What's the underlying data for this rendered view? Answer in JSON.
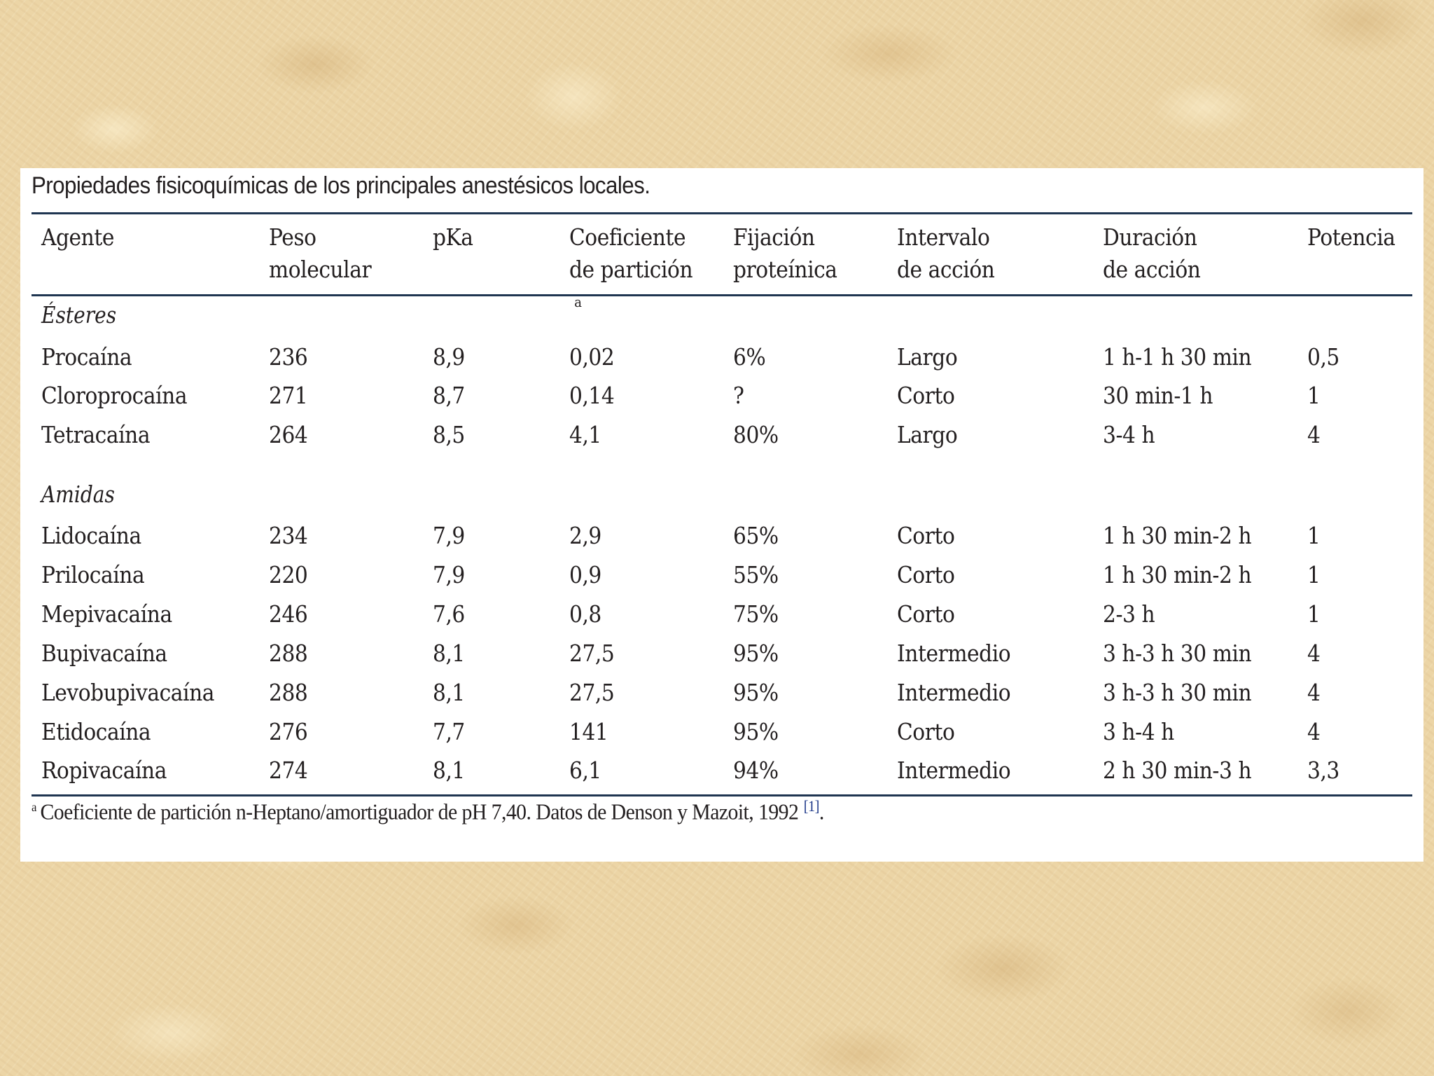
{
  "table": {
    "caption": "Propiedades fisicoquímicas de los principales anestésicos locales.",
    "headers": {
      "agente": [
        "Agente"
      ],
      "peso": [
        "Peso",
        "molecular"
      ],
      "pka": [
        "pKa"
      ],
      "coef": [
        "Coeficiente",
        "de partición"
      ],
      "coef_mark": "a",
      "fijacion": [
        "Fijación",
        "proteínica"
      ],
      "intervalo": [
        "Intervalo",
        "de acción"
      ],
      "duracion": [
        "Duración",
        "de acción"
      ],
      "potencia": [
        "Potencia"
      ]
    },
    "groups": [
      {
        "name": "Ésteres",
        "rows": [
          [
            "Procaína",
            "236",
            "8,9",
            "0,02",
            "6%",
            "Largo",
            "1 h-1 h 30 min",
            "0,5"
          ],
          [
            "Cloroprocaína",
            "271",
            "8,7",
            "0,14",
            "?",
            "Corto",
            "30 min-1 h",
            "1"
          ],
          [
            "Tetracaína",
            "264",
            "8,5",
            "4,1",
            "80%",
            "Largo",
            "3-4 h",
            "4"
          ]
        ]
      },
      {
        "name": "Amidas",
        "rows": [
          [
            "Lidocaína",
            "234",
            "7,9",
            "2,9",
            "65%",
            "Corto",
            "1 h 30 min-2 h",
            "1"
          ],
          [
            "Prilocaína",
            "220",
            "7,9",
            "0,9",
            "55%",
            "Corto",
            "1 h 30 min-2 h",
            "1"
          ],
          [
            "Mepivacaína",
            "246",
            "7,6",
            "0,8",
            "75%",
            "Corto",
            "2-3 h",
            "1"
          ],
          [
            "Bupivacaína",
            "288",
            "8,1",
            "27,5",
            "95%",
            "Intermedio",
            "3 h-3 h 30 min",
            "4"
          ],
          [
            "Levobupivacaína",
            "288",
            "8,1",
            "27,5",
            "95%",
            "Intermedio",
            "3 h-3 h 30 min",
            "4"
          ],
          [
            "Etidocaína",
            "276",
            "7,7",
            "141",
            "95%",
            "Corto",
            "3 h-4 h",
            "4"
          ],
          [
            "Ropivacaína",
            "274",
            "8,1",
            "6,1",
            "94%",
            "Intermedio",
            "2 h 30 min-3 h",
            "3,3"
          ]
        ]
      }
    ],
    "footnote": {
      "mark": "a",
      "text": "Coeficiente de partición n-Heptano/amortiguador de pH 7,40. Datos de Denson y Mazoit, 1992",
      "ref": "[1]",
      "end": "."
    }
  }
}
